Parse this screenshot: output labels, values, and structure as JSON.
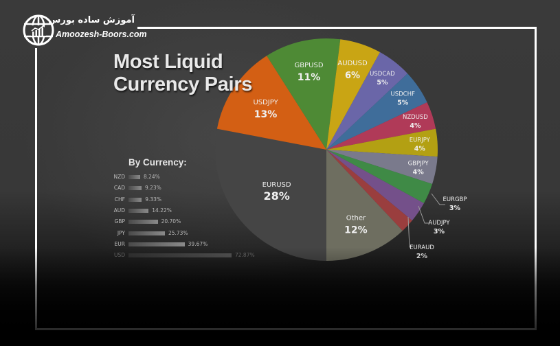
{
  "brand": {
    "name_fa": "آموزش ساده بورس",
    "name_en": "Amoozesh-Boors.com",
    "logo_icon": "globe-chart-icon"
  },
  "chart_data": [
    {
      "type": "pie",
      "title": "Most Liquid Currency Pairs",
      "title_lines": [
        "Most Liquid",
        "Currency Pairs"
      ],
      "start_angle_deg": 180,
      "direction": "clockwise",
      "slices": [
        {
          "label": "EURUSD",
          "value": 28,
          "display": "28%",
          "color": "#454545"
        },
        {
          "label": "USDJPY",
          "value": 13,
          "display": "13%",
          "color": "#d35f14"
        },
        {
          "label": "GBPUSD",
          "value": 11,
          "display": "11%",
          "color": "#4e8a35"
        },
        {
          "label": "AUDUSD",
          "value": 6,
          "display": "6%",
          "color": "#c9a514"
        },
        {
          "label": "USDCAD",
          "value": 5,
          "display": "5%",
          "color": "#6a66a8"
        },
        {
          "label": "USDCHF",
          "value": 5,
          "display": "5%",
          "color": "#3f6d9a"
        },
        {
          "label": "NZDUSD",
          "value": 4,
          "display": "4%",
          "color": "#b03a58"
        },
        {
          "label": "EURJPY",
          "value": 4,
          "display": "4%",
          "color": "#b3a013"
        },
        {
          "label": "GBPJPY",
          "value": 4,
          "display": "4%",
          "color": "#7a7a8c"
        },
        {
          "label": "EURGBP",
          "value": 3,
          "display": "3%",
          "color": "#3f8a46"
        },
        {
          "label": "AUDJPY",
          "value": 3,
          "display": "3%",
          "color": "#74508a"
        },
        {
          "label": "EURAUD",
          "value": 2,
          "display": "2%",
          "color": "#9a3e3e"
        },
        {
          "label": "Other",
          "value": 12,
          "display": "12%",
          "color": "#6e6e60"
        }
      ]
    },
    {
      "type": "bar",
      "orientation": "horizontal",
      "title": "By Currency:",
      "categories": [
        "NZD",
        "CAD",
        "CHF",
        "AUD",
        "GBP",
        "JPY",
        "EUR",
        "USD"
      ],
      "values": [
        8.24,
        9.23,
        9.33,
        14.22,
        20.7,
        25.73,
        39.67,
        72.87
      ],
      "value_labels": [
        "8.24%",
        "9.23%",
        "9.33%",
        "14.22%",
        "20.70%",
        "25.73%",
        "39.67%",
        "72.87%"
      ],
      "xlabel": "",
      "ylabel": "",
      "grid": false
    }
  ]
}
